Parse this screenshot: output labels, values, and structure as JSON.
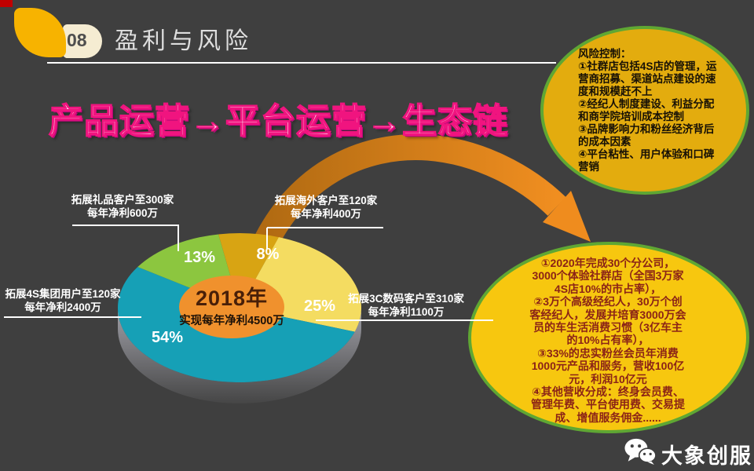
{
  "slide": {
    "background": "#3F3F3F",
    "corner_mark_color": "#C00000",
    "accent_yellow": "#F7B300",
    "bubble_border_green": "#5FA733"
  },
  "header": {
    "number": "08",
    "title": "盈利与风险"
  },
  "headline": {
    "text": "产品运营→平台运营→生态链",
    "stroke_color": "#F0147F"
  },
  "risk_bubble": {
    "fill": "#E3AC0E",
    "text": "风险控制：\n①社群店包括4S店的管理，运\n营商招募、渠道站点建设的速\n度和规模赶不上\n②经纪人制度建设、利益分配\n和商学院培训成本控制\n③品牌影响力和粉丝经济背后\n的成本因素\n④平台粘性、用户体验和口碑\n营销"
  },
  "plan_bubble": {
    "fill": "#F7C70F",
    "text_color": "#8B2317",
    "text": "①2020年完成30个分公司，\n3000个体验社群店（全国3万家\n4S店10%的市占率），\n②3万个高级经纪人，30万个创\n客经纪人，发展并培育3000万会\n员的车生活消费习惯（3亿车主\n的10%占有率），\n③33%的忠实粉丝会员年消费\n1000元产品和服务，营收100亿\n元，利润10亿元\n④其他营收分成：终身会员费、\n管理年费、平台使用费、交易提\n成、增值服务佣金......"
  },
  "chart_data": {
    "type": "pie",
    "start_angle_deg": -10,
    "center_fill": "#F0912D",
    "center_label": {
      "year": "2018年",
      "subtitle": "实现每年净利4500万"
    },
    "slices": [
      {
        "name": "海外客户",
        "pct": 8,
        "label": "8%",
        "color": "#D8A413",
        "callout": {
          "line1": "拓展海外客户至120家",
          "line2": "每年净利400万"
        }
      },
      {
        "name": "3C数码客户",
        "pct": 25,
        "label": "25%",
        "color": "#F4DC61",
        "callout": {
          "line1": "拓展3C数码客户至310家",
          "line2": "每年净利1100万"
        }
      },
      {
        "name": "4S集团用户",
        "pct": 54,
        "label": "54%",
        "color": "#16A0B6",
        "callout": {
          "line1": "拓展4S集团用户至120家",
          "line2": "每年净利2400万"
        }
      },
      {
        "name": "礼品客户",
        "pct": 13,
        "label": "13%",
        "color": "#8CC63F",
        "callout": {
          "line1": "拓展礼品客户至300家",
          "line2": "每年净利600万"
        }
      }
    ],
    "rim_gradient": [
      "#A0A0A8",
      "#464646"
    ],
    "arrow_gradient": [
      "#B06A12",
      "#F08E20"
    ]
  },
  "footer": {
    "brand": "大象创服"
  }
}
